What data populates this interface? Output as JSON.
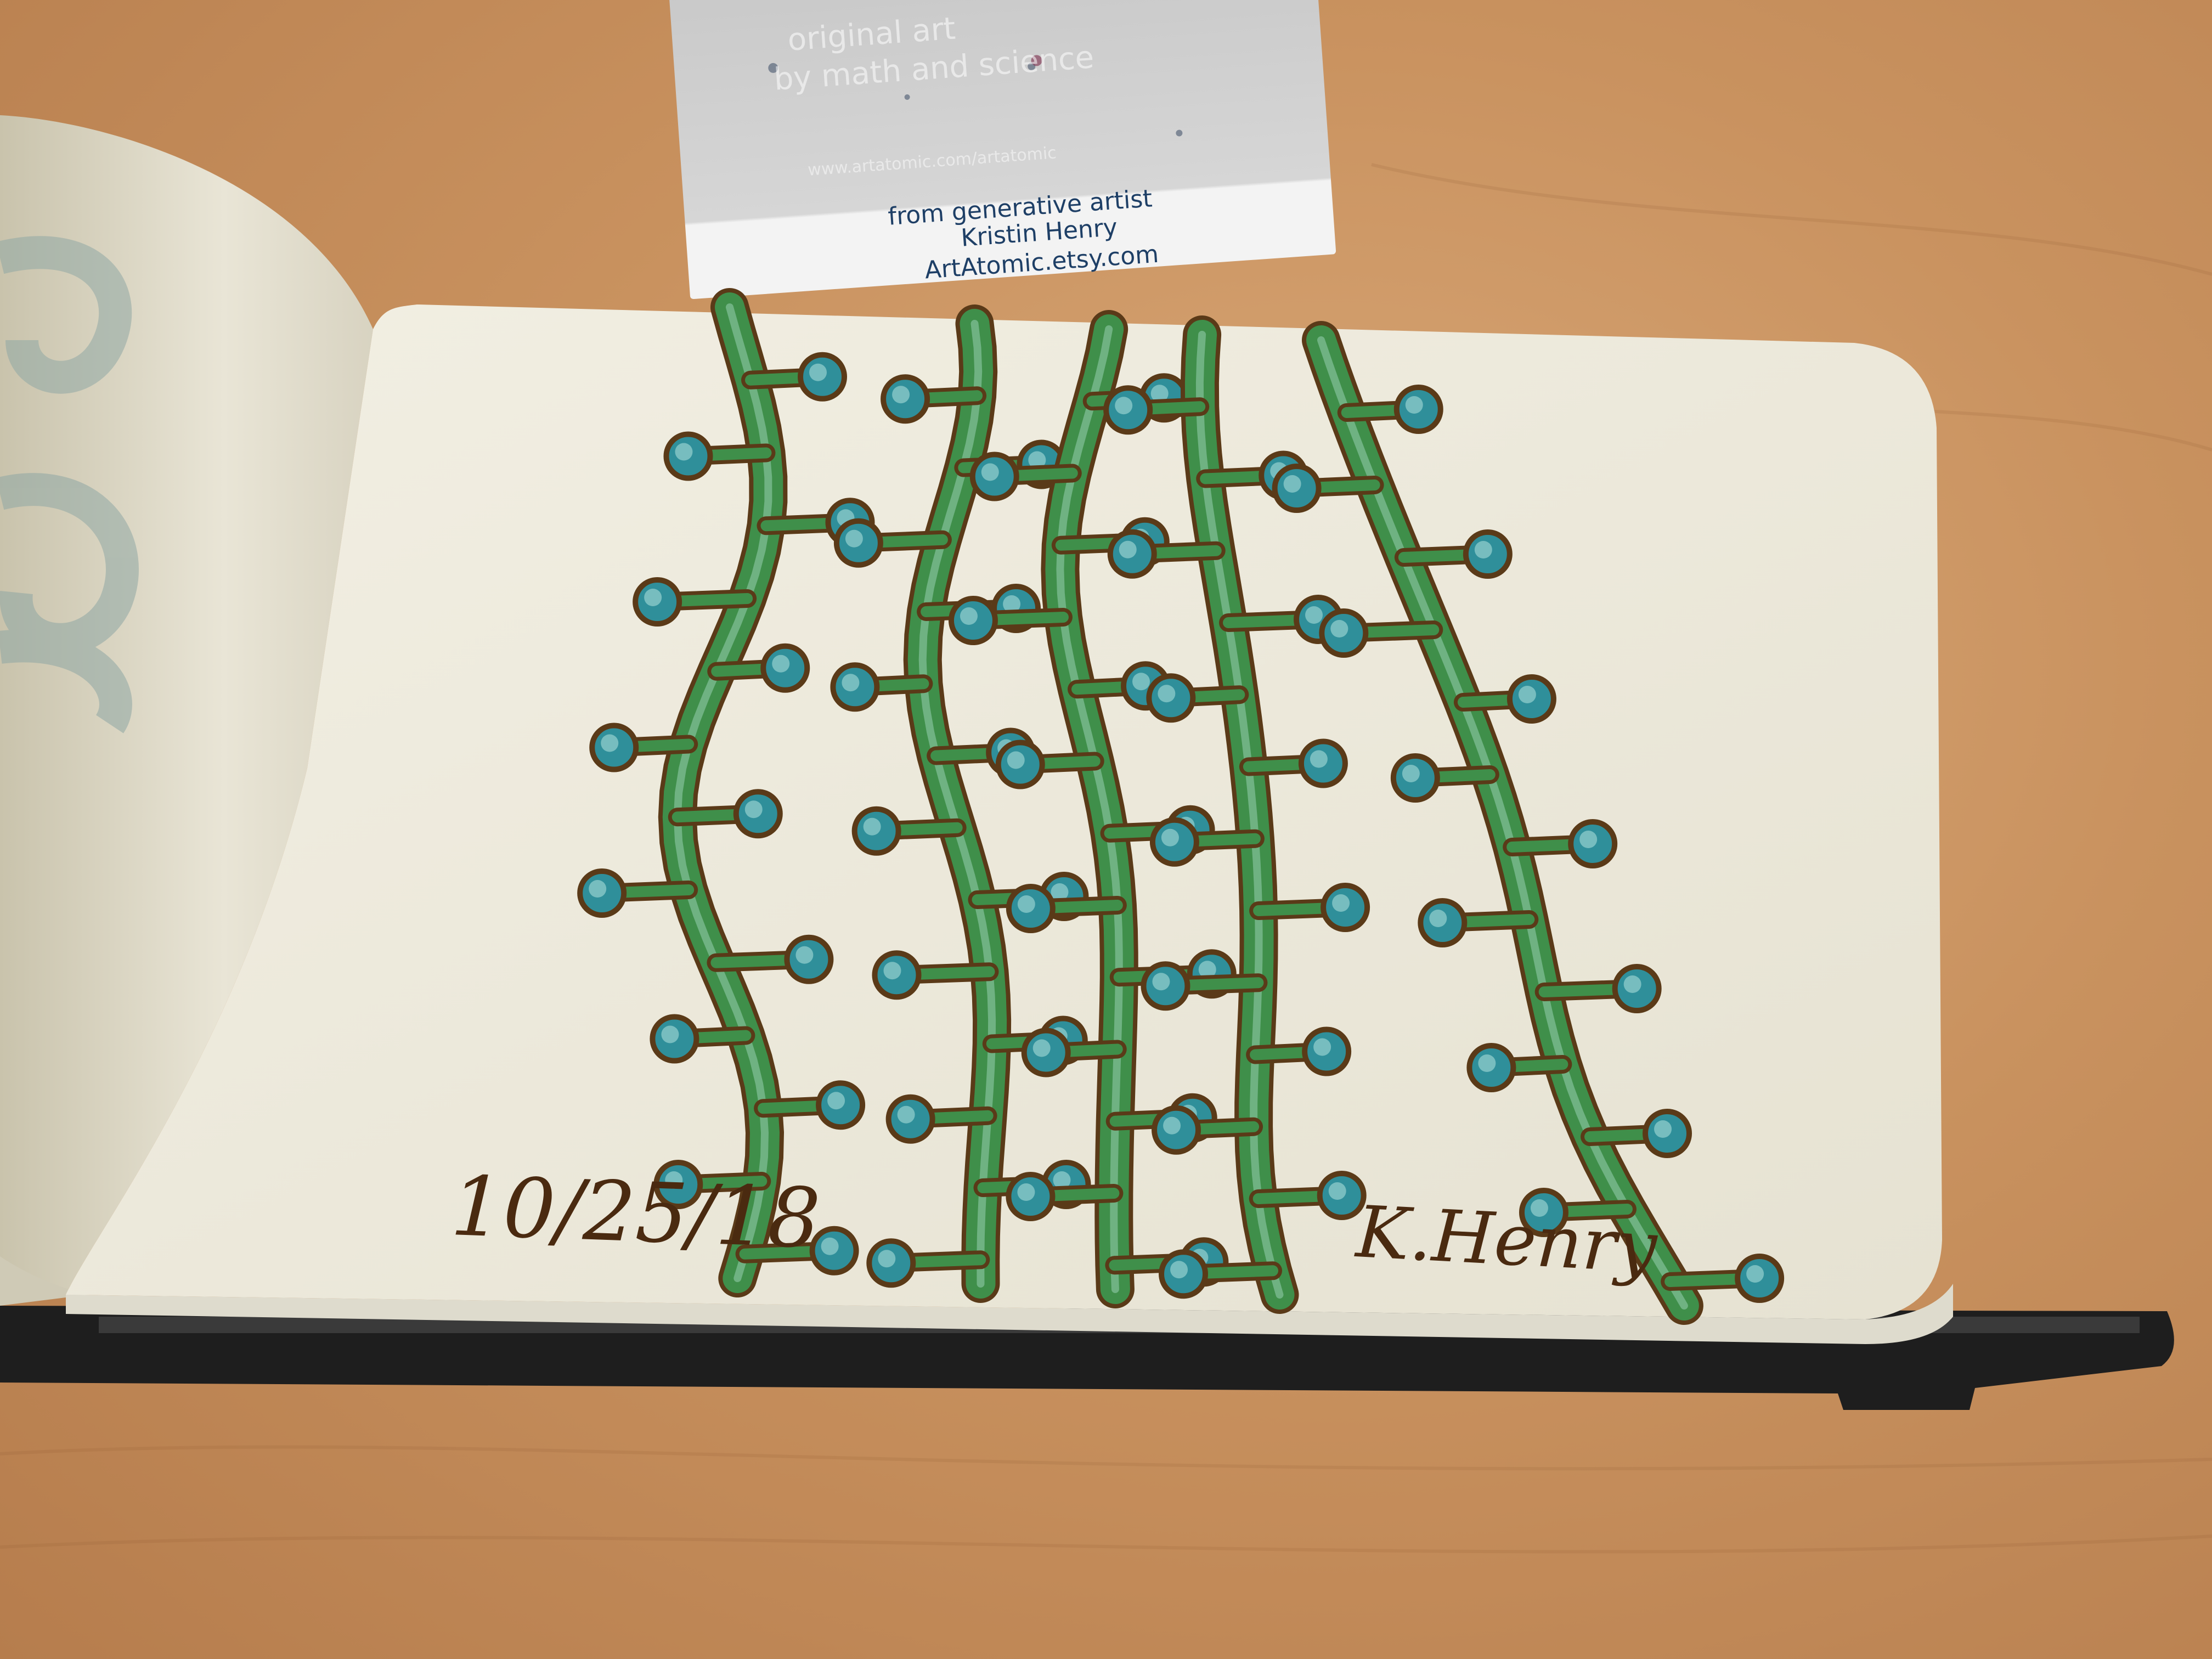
{
  "business_card": {
    "text_line_1": "from generative artist",
    "text_line_2": "Kristin Henry",
    "text_line_3": "ArtAtomic.etsy.com",
    "faded_line_a": "original art",
    "faded_line_b": "by math and science",
    "faded_url": "www.artatomic.com/artatomic"
  },
  "sketchbook": {
    "date": "10/25/18",
    "signature": "K.Henry"
  },
  "colors": {
    "table": "#c9925f",
    "page": "#efece0",
    "vine_green": "#3f8f4a",
    "vine_outline": "#5a3a18",
    "bud_teal": "#2f8f9a",
    "ink": "#4a2a10"
  }
}
